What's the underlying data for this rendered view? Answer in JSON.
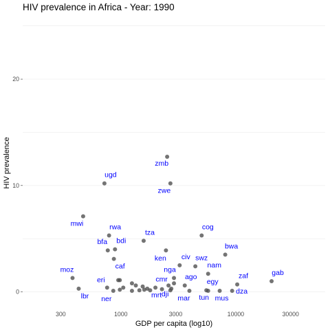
{
  "chart_data": {
    "type": "scatter",
    "title": "HIV prevalence in Africa - Year: 1990",
    "xlabel": "GDP per capita (log10)",
    "ylabel": "HIV prevalence",
    "x_scale": "log10",
    "xlim": [
      140,
      60000
    ],
    "ylim": [
      -1.0,
      25.5
    ],
    "x_ticks": [
      300,
      1000,
      3000,
      10000,
      30000
    ],
    "x_tick_labels": [
      "300",
      "1000",
      "3000",
      "10000",
      "30000"
    ],
    "y_ticks": [
      0,
      10,
      20
    ],
    "y_tick_labels": [
      "0",
      "10",
      "20"
    ],
    "grid": true,
    "legend": "none",
    "point_color": "#4d4d4d",
    "label_color": "#0000ff",
    "points": [
      {
        "label": "zmb",
        "x": 2530,
        "y": 12.7
      },
      {
        "label": "ugd",
        "x": 720,
        "y": 10.2
      },
      {
        "label": "zwe",
        "x": 2700,
        "y": 10.2
      },
      {
        "label": "mwi",
        "x": 470,
        "y": 7.1
      },
      {
        "label": "rwa",
        "x": 790,
        "y": 5.3
      },
      {
        "label": "cog",
        "x": 5050,
        "y": 5.3
      },
      {
        "label": "tza",
        "x": 1580,
        "y": 4.8
      },
      {
        "label": "bdi",
        "x": 890,
        "y": 4.0
      },
      {
        "label": "bfa",
        "x": 770,
        "y": 3.9
      },
      {
        "label": "ken",
        "x": 2470,
        "y": 3.9
      },
      {
        "label": "bwa",
        "x": 8100,
        "y": 3.5
      },
      {
        "label": "caf",
        "x": 870,
        "y": 3.1
      },
      {
        "label": "civ",
        "x": 3250,
        "y": 2.5
      },
      {
        "label": "swz",
        "x": 4450,
        "y": 2.4
      },
      {
        "label": "nam",
        "x": 5750,
        "y": 1.7
      },
      {
        "label": "nga",
        "x": 2900,
        "y": 1.3
      },
      {
        "label": "moz",
        "x": 380,
        "y": 1.3
      },
      {
        "label": "zaf",
        "x": 10300,
        "y": 0.7
      },
      {
        "label": "gab",
        "x": 20500,
        "y": 1.0
      },
      {
        "label": "ago",
        "x": 3600,
        "y": 0.6
      },
      {
        "label": "cmr",
        "x": 2000,
        "y": 0.4
      },
      {
        "label": "eri",
        "x": 760,
        "y": 0.4
      },
      {
        "label": "egy",
        "x": 5550,
        "y": 0.15
      },
      {
        "label": "dji",
        "x": 2750,
        "y": 0.3
      },
      {
        "label": "lbr",
        "x": 430,
        "y": 0.3
      },
      {
        "label": "mrt",
        "x": 2280,
        "y": 0.25
      },
      {
        "label": "ner",
        "x": 860,
        "y": 0.1
      },
      {
        "label": "mar",
        "x": 3950,
        "y": 0.1
      },
      {
        "label": "tun",
        "x": 5750,
        "y": 0.1
      },
      {
        "label": "mus",
        "x": 7250,
        "y": 0.1
      },
      {
        "label": "dza",
        "x": 9300,
        "y": 0.1
      },
      {
        "label": "",
        "x": 950,
        "y": 1.1
      },
      {
        "label": "",
        "x": 980,
        "y": 1.1
      },
      {
        "label": "",
        "x": 1250,
        "y": 0.8
      },
      {
        "label": "",
        "x": 1350,
        "y": 0.6
      },
      {
        "label": "",
        "x": 1550,
        "y": 0.5
      },
      {
        "label": "",
        "x": 1700,
        "y": 0.3
      },
      {
        "label": "",
        "x": 1250,
        "y": 0.1
      },
      {
        "label": "",
        "x": 1450,
        "y": 0.15
      },
      {
        "label": "",
        "x": 1600,
        "y": 0.2
      },
      {
        "label": "",
        "x": 1800,
        "y": 0.15
      },
      {
        "label": "",
        "x": 2900,
        "y": 0.8
      },
      {
        "label": "",
        "x": 2700,
        "y": 0.15
      },
      {
        "label": "",
        "x": 980,
        "y": 0.2
      },
      {
        "label": "",
        "x": 1050,
        "y": 0.4
      },
      {
        "label": "",
        "x": 2600,
        "y": 0.6
      }
    ]
  }
}
